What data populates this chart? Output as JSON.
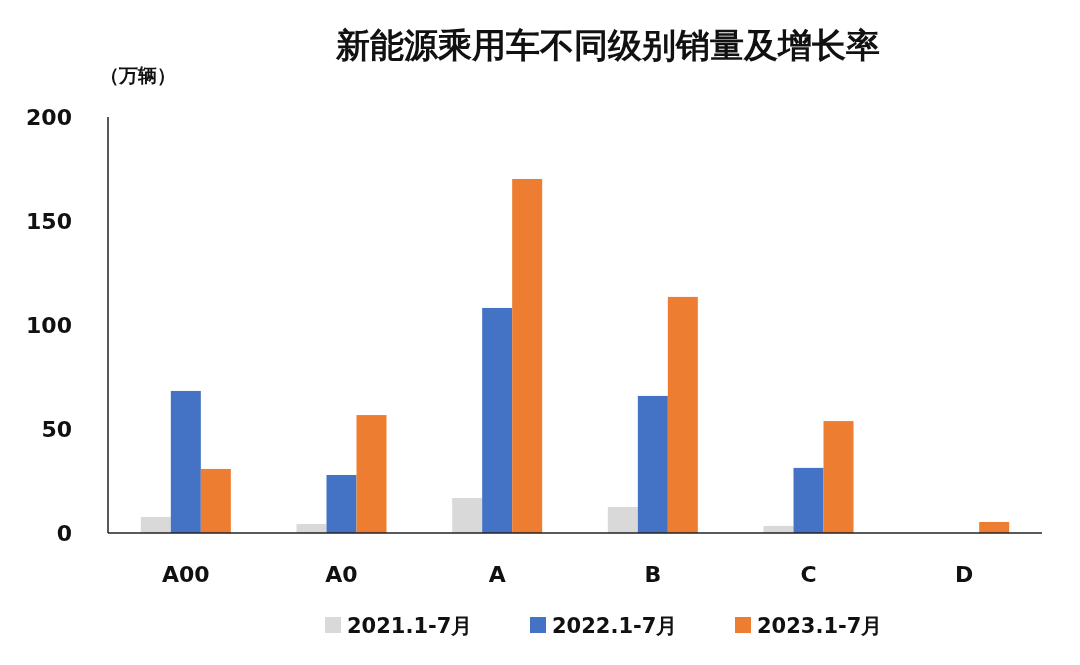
{
  "chart_data": {
    "type": "bar",
    "title": "新能源乘用车不同级别销量及增长率",
    "ylabel": "（万辆）",
    "categories": [
      "A00",
      "A0",
      "A",
      "B",
      "C",
      "D"
    ],
    "series": [
      {
        "name": "2021.1-7月",
        "color": "#d9d9d9",
        "values": [
          7.7,
          4.3,
          16.8,
          12.5,
          3.4,
          0
        ]
      },
      {
        "name": "2022.1-7月",
        "color": "#4472c4",
        "values": [
          68.3,
          27.9,
          108.2,
          65.9,
          31.3,
          0
        ]
      },
      {
        "name": "2023.1-7月",
        "color": "#ed7d31",
        "values": [
          30.8,
          56.7,
          170.2,
          113.5,
          53.8,
          5.3
        ]
      }
    ],
    "ylim": [
      0,
      200
    ],
    "yticks": [
      0,
      50,
      100,
      150,
      200
    ],
    "grid": false,
    "legend": "bottom"
  }
}
